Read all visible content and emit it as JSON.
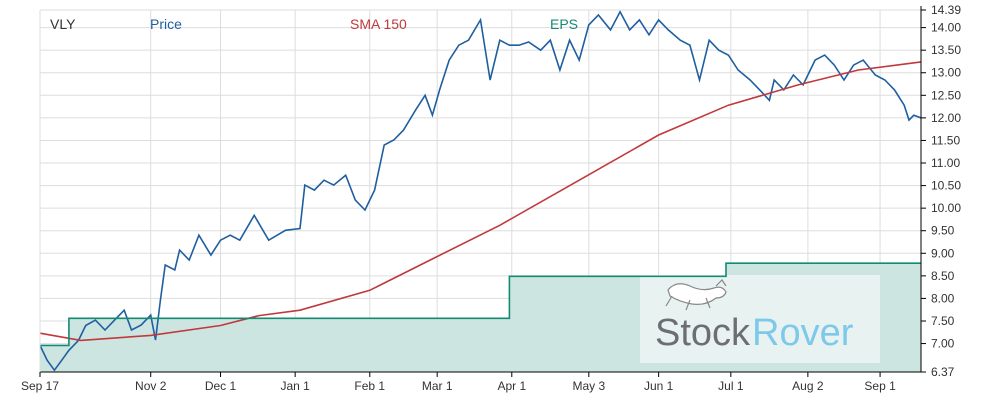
{
  "chart_data": {
    "type": "line",
    "legend": [
      {
        "label": "VLY",
        "color": "#333333"
      },
      {
        "label": "Price",
        "color": "#1f5fa0"
      },
      {
        "label": "SMA 150",
        "color": "#c0393b"
      },
      {
        "label": "EPS",
        "color": "#138a72"
      }
    ],
    "legend_placement": "top",
    "grid": true,
    "ylim": [
      6.37,
      14.39
    ],
    "xlim": [
      "2020-09-17",
      "2021-09-18"
    ],
    "y_ticks": [
      "14.39",
      "14.00",
      "13.50",
      "13.00",
      "12.50",
      "12.00",
      "11.50",
      "11.00",
      "10.50",
      "10.00",
      "9.50",
      "9.00",
      "8.50",
      "8.00",
      "7.50",
      "7.00",
      "6.37"
    ],
    "x_ticks": [
      {
        "label": "Sep 17",
        "date": "2020-09-17"
      },
      {
        "label": "Nov 2",
        "date": "2020-11-02"
      },
      {
        "label": "Dec 1",
        "date": "2020-12-01"
      },
      {
        "label": "Jan 1",
        "date": "2021-01-01"
      },
      {
        "label": "Feb 1",
        "date": "2021-02-01"
      },
      {
        "label": "Mar 1",
        "date": "2021-03-01"
      },
      {
        "label": "Apr 1",
        "date": "2021-04-01"
      },
      {
        "label": "May 3",
        "date": "2021-05-03"
      },
      {
        "label": "Jun 1",
        "date": "2021-06-01"
      },
      {
        "label": "Jul 1",
        "date": "2021-07-01"
      },
      {
        "label": "Aug 2",
        "date": "2021-08-02"
      },
      {
        "label": "Sep 1",
        "date": "2021-09-01"
      }
    ],
    "series": [
      {
        "name": "Price",
        "color": "#1f5fa0",
        "points": [
          [
            "2020-09-17",
            6.96
          ],
          [
            "2020-09-20",
            6.63
          ],
          [
            "2020-09-23",
            6.41
          ],
          [
            "2020-09-26",
            6.63
          ],
          [
            "2020-09-29",
            6.85
          ],
          [
            "2020-10-03",
            7.07
          ],
          [
            "2020-10-06",
            7.4
          ],
          [
            "2020-10-10",
            7.52
          ],
          [
            "2020-10-14",
            7.3
          ],
          [
            "2020-10-18",
            7.52
          ],
          [
            "2020-10-22",
            7.74
          ],
          [
            "2020-10-25",
            7.3
          ],
          [
            "2020-10-29",
            7.41
          ],
          [
            "2020-11-02",
            7.63
          ],
          [
            "2020-11-04",
            7.08
          ],
          [
            "2020-11-06",
            7.96
          ],
          [
            "2020-11-08",
            8.74
          ],
          [
            "2020-11-12",
            8.63
          ],
          [
            "2020-11-14",
            9.07
          ],
          [
            "2020-11-18",
            8.85
          ],
          [
            "2020-11-22",
            9.4
          ],
          [
            "2020-11-27",
            8.96
          ],
          [
            "2020-12-01",
            9.29
          ],
          [
            "2020-12-05",
            9.4
          ],
          [
            "2020-12-09",
            9.29
          ],
          [
            "2020-12-15",
            9.84
          ],
          [
            "2020-12-21",
            9.29
          ],
          [
            "2020-12-28",
            9.51
          ],
          [
            "2021-01-03",
            9.55
          ],
          [
            "2021-01-05",
            10.51
          ],
          [
            "2021-01-09",
            10.4
          ],
          [
            "2021-01-13",
            10.62
          ],
          [
            "2021-01-17",
            10.51
          ],
          [
            "2021-01-22",
            10.73
          ],
          [
            "2021-01-26",
            10.18
          ],
          [
            "2021-01-30",
            9.96
          ],
          [
            "2021-02-03",
            10.4
          ],
          [
            "2021-02-07",
            11.4
          ],
          [
            "2021-02-11",
            11.51
          ],
          [
            "2021-02-15",
            11.73
          ],
          [
            "2021-02-20",
            12.17
          ],
          [
            "2021-02-24",
            12.5
          ],
          [
            "2021-02-27",
            12.06
          ],
          [
            "2021-03-02",
            12.62
          ],
          [
            "2021-03-06",
            13.28
          ],
          [
            "2021-03-10",
            13.61
          ],
          [
            "2021-03-14",
            13.72
          ],
          [
            "2021-03-19",
            14.17
          ],
          [
            "2021-03-23",
            12.84
          ],
          [
            "2021-03-27",
            13.72
          ],
          [
            "2021-03-31",
            13.61
          ],
          [
            "2021-04-04",
            13.61
          ],
          [
            "2021-04-08",
            13.68
          ],
          [
            "2021-04-13",
            13.5
          ],
          [
            "2021-04-17",
            13.72
          ],
          [
            "2021-04-21",
            13.06
          ],
          [
            "2021-04-25",
            13.72
          ],
          [
            "2021-04-29",
            13.28
          ],
          [
            "2021-05-03",
            14.06
          ],
          [
            "2021-05-07",
            14.28
          ],
          [
            "2021-05-12",
            13.95
          ],
          [
            "2021-05-16",
            14.35
          ],
          [
            "2021-05-20",
            13.95
          ],
          [
            "2021-05-24",
            14.17
          ],
          [
            "2021-05-28",
            13.84
          ],
          [
            "2021-06-01",
            14.17
          ],
          [
            "2021-06-05",
            13.95
          ],
          [
            "2021-06-10",
            13.72
          ],
          [
            "2021-06-14",
            13.61
          ],
          [
            "2021-06-18",
            12.84
          ],
          [
            "2021-06-22",
            13.72
          ],
          [
            "2021-06-26",
            13.5
          ],
          [
            "2021-06-30",
            13.39
          ],
          [
            "2021-07-04",
            13.06
          ],
          [
            "2021-07-09",
            12.84
          ],
          [
            "2021-07-13",
            12.62
          ],
          [
            "2021-07-17",
            12.39
          ],
          [
            "2021-07-19",
            12.84
          ],
          [
            "2021-07-23",
            12.62
          ],
          [
            "2021-07-27",
            12.95
          ],
          [
            "2021-07-31",
            12.73
          ],
          [
            "2021-08-05",
            13.28
          ],
          [
            "2021-08-09",
            13.39
          ],
          [
            "2021-08-13",
            13.17
          ],
          [
            "2021-08-17",
            12.84
          ],
          [
            "2021-08-21",
            13.17
          ],
          [
            "2021-08-25",
            13.28
          ],
          [
            "2021-08-30",
            12.95
          ],
          [
            "2021-09-03",
            12.84
          ],
          [
            "2021-09-07",
            12.62
          ],
          [
            "2021-09-11",
            12.28
          ],
          [
            "2021-09-13",
            11.95
          ],
          [
            "2021-09-15",
            12.06
          ],
          [
            "2021-09-18",
            12.0
          ]
        ]
      },
      {
        "name": "SMA 150",
        "color": "#c0393b",
        "points": [
          [
            "2020-09-17",
            7.23
          ],
          [
            "2020-10-04",
            7.07
          ],
          [
            "2020-11-02",
            7.18
          ],
          [
            "2020-12-01",
            7.4
          ],
          [
            "2020-12-17",
            7.62
          ],
          [
            "2021-01-03",
            7.74
          ],
          [
            "2021-02-01",
            8.18
          ],
          [
            "2021-02-26",
            8.85
          ],
          [
            "2021-03-27",
            9.62
          ],
          [
            "2021-04-29",
            10.62
          ],
          [
            "2021-06-01",
            11.62
          ],
          [
            "2021-06-30",
            12.28
          ],
          [
            "2021-07-29",
            12.73
          ],
          [
            "2021-08-23",
            13.06
          ],
          [
            "2021-09-18",
            13.24
          ]
        ]
      },
      {
        "name": "EPS",
        "color": "#138a72",
        "fill": "#cce5e1",
        "step": true,
        "points": [
          [
            "2020-09-17",
            6.96
          ],
          [
            "2020-09-29",
            7.56
          ],
          [
            "2021-03-31",
            8.49
          ],
          [
            "2021-06-29",
            8.78
          ],
          [
            "2021-09-18",
            8.78
          ]
        ]
      }
    ]
  },
  "watermark": {
    "part1": "Stock",
    "part2": "Rover",
    "color1": "#6d6e71",
    "color2": "#7ec8ea"
  }
}
